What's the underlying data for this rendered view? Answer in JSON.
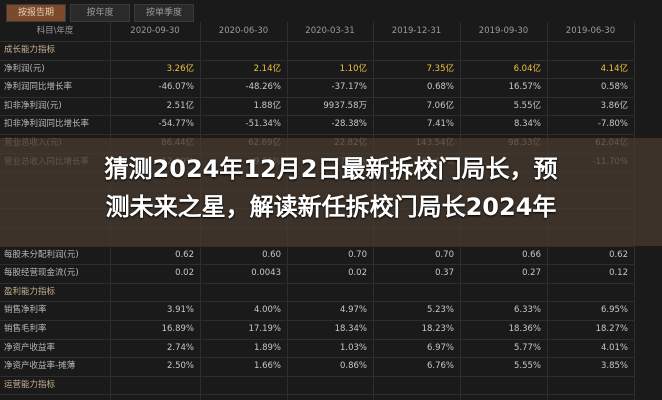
{
  "tabs": [
    "按报告期",
    "按年度",
    "按单季度"
  ],
  "table": {
    "header": [
      "科目\\年度",
      "2020-09-30",
      "2020-06-30",
      "2020-03-31",
      "2019-12-31",
      "2019-09-30",
      "2019-06-30"
    ],
    "rows": [
      {
        "label": "成长能力指标"
      },
      {
        "label": "净利润(元)",
        "values": [
          "3.26亿",
          "2.14亿",
          "1.10亿",
          "7.35亿",
          "6.04亿",
          "4.14亿"
        ]
      },
      {
        "label": "净利润同比增长率",
        "values": [
          "-46.07%",
          "-48.26%",
          "-37.17%",
          "0.68%",
          "16.57%",
          "0.58%"
        ]
      },
      {
        "label": "扣非净利润(元)",
        "values": [
          "2.51亿",
          "1.88亿",
          "9937.58万",
          "7.06亿",
          "5.55亿",
          "3.86亿"
        ]
      },
      {
        "label": "扣非净利润同比增长率",
        "values": [
          "-54.77%",
          "-51.34%",
          "-28.38%",
          "7.41%",
          "8.34%",
          "-7.80%"
        ]
      },
      {
        "label": "营业总收入(元)",
        "values": [
          "86.44亿",
          "62.69亿",
          "22.82亿",
          "143.54亿",
          "98.33亿",
          "62.04亿"
        ]
      },
      {
        "label": "营业总收入同比增长率",
        "values": [
          "-12.09%",
          "-9.51%",
          "-27.04%",
          "26.13%",
          "",
          "-11.70%"
        ]
      },
      {
        "label": "每股未分配利润(元)",
        "values": [
          "0.62",
          "0.60",
          "0.70",
          "0.70",
          "0.66",
          "0.62"
        ]
      },
      {
        "label": "每股经营现金流(元)",
        "values": [
          "0.02",
          "0.0043",
          "0.02",
          "0.37",
          "0.27",
          "0.12"
        ]
      },
      {
        "label": "盈利能力指标"
      },
      {
        "label": "销售净利率",
        "values": [
          "3.91%",
          "4.00%",
          "4.97%",
          "5.23%",
          "6.33%",
          "6.95%"
        ]
      },
      {
        "label": "销售毛利率",
        "values": [
          "16.89%",
          "17.19%",
          "18.34%",
          "18.23%",
          "18.36%",
          "18.27%"
        ]
      },
      {
        "label": "净资产收益率",
        "values": [
          "2.74%",
          "1.89%",
          "1.03%",
          "6.97%",
          "5.77%",
          "4.01%"
        ]
      },
      {
        "label": "净资产收益率-摊薄",
        "values": [
          "2.50%",
          "1.66%",
          "0.86%",
          "6.76%",
          "5.55%",
          "3.85%"
        ]
      },
      {
        "label": "运营能力指标"
      }
    ]
  },
  "overlay": {
    "lines": [
      "猜测2024年12月2日最新拆校门局长，预",
      "测未来之星，解读新任拆校门局长2024年"
    ]
  }
}
